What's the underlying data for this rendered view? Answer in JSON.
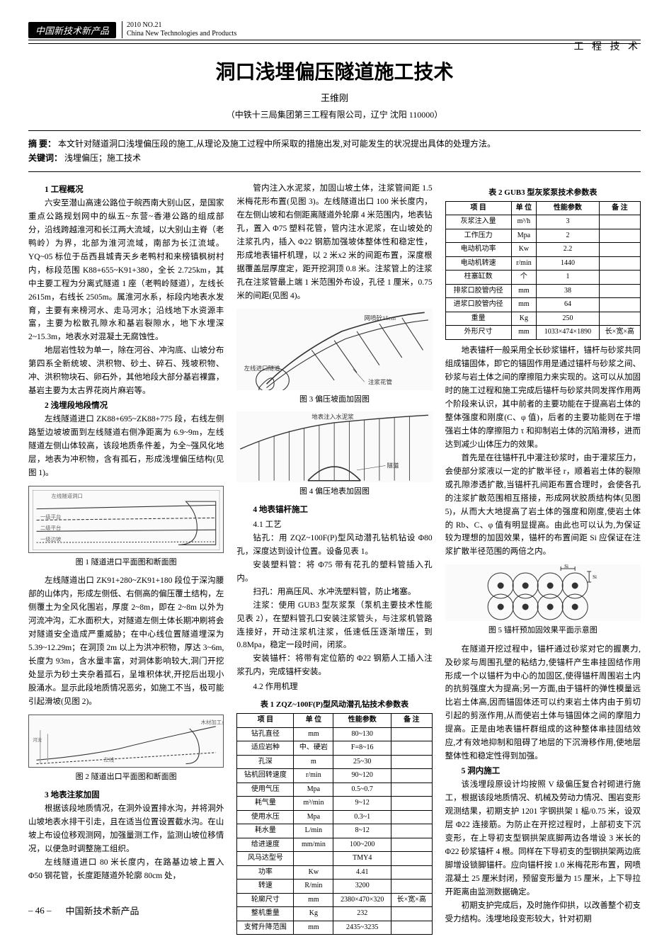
{
  "header": {
    "publication_badge": "中国新技术新产品",
    "issue": "2010 NO.21",
    "pub_en": "China New Technologies and Products",
    "section_tag": "工 程 技 术"
  },
  "paper": {
    "title": "洞口浅埋偏压隧道施工技术",
    "author": "王维刚",
    "affiliation": "（中铁十三局集团第三工程有限公司，辽宁 沈阳 110000）",
    "abstract_label": "摘 要：",
    "abstract": "本文针对隧道洞口浅埋偏压段的施工,从理论及施工过程中所采取的措施出发,对可能发生的状况提出具体的处理方法。",
    "keywords_label": "关键词：",
    "keywords": "浅埋偏压；施工技术"
  },
  "col1": {
    "h1": "1 工程概况",
    "p1": "六安至潜山高速公路位于皖西南大别山区，是国家重点公路规划网中的纵五~东营~香港公路的组成部分，沿线跨越淮河和长江两大流域，以大别山主脊（老鸭岭）为界，北部为淮河流域，南部为长江流域。YQ~05 标位于岳西县城青天乡老鸭村和来榜镇枫树村内，标段范围 K88+655~K91+380，全长 2.725km，其中主要工程为分离式隧道 1 座（老鸭岭隧道），左线长 2615m，右线长 2505m。属淮河水系，标段内地表水发育，主要有来榜河水、走马河水；沿线地下水资源丰富，主要为松散孔隙水和基岩裂隙水，地下水埋深 2~15.3m，地表水对混凝土无腐蚀性。",
    "p2": "地层岩性较为单一，除在河谷、冲沟底、山坡分布第四系全新统坡、洪积物、砂土、碎石、残坡积物、冲、洪积物块石、卵石外，其他地段大部分基岩裸露，基岩主要为太古界花岗片麻岩等。",
    "h2": "2 浅埋段地段情况",
    "p3": "左线隧道进口 ZK88+695~ZK88+775 段，右线左侧路堑边坡坡面到左线隧道右侧净距离为 6.9~9m，左线隧道左侧山体较高，该段地质条件差，为全~强风化地层，地表为冲积物，含有孤石，形成浅埋偏压结构(见图 1)。",
    "fig1_cap": "图 1 隧道进口平面图和断面图",
    "p4": "左线隧道出口 ZK91+280~ZK91+180 段位于深沟腰部的山体内，形成左侧低、右侧高的偏压覆土结构，左侧覆土为全风化围岩，厚度 2~8m，即在 2~8m 以外为河流冲沟，汇水面积大，对隧道左侧土体长期冲刷将会对隧道安全造成严重威胁；在中心线位置隧道埋深为 5.39~12.29m；在洞顶 2m 以上为洪冲积物，厚达 3~6m,长度为 93m，含水量丰富，对洞体影响较大,洞门开挖处显示为砂土夹杂着孤石，呈堆积体状,开挖后出现小股涌水。显示此段地质情况恶劣，如施工不当，极可能引起滑坡(见图 2)。",
    "fig2_cap": "图 2 隧道出口平面图和断面图",
    "h3": "3 地表注浆加固",
    "p5": "根据该段地质情况，在洞外设置排水沟，并将洞外山坡地表水排干引走，且在适当位置设置截水沟。在山坡上布设位移观测网，加强量测工作，监测山坡位移情况，以便急时调整施工组织。",
    "p6": "左线隧道进口 80 米长度内，在路基边坡上置入 Φ50 钢花管，长度距隧道外轮廓 80cm 处，"
  },
  "col2": {
    "p1": "管内注入水泥浆，加固山坡土体，注浆管间距 1.5 米梅花形布置(见图 3)。左线隧道出口 100 米长度内，在左侧山坡和右侧距离隧道外轮廓 4 米范围内，地表钻孔，置入 Φ75 塑料花管，管内注水泥浆，在山坡处的注浆孔内，插入 Φ22 钢筋加强坡体整体性和稳定性，形成地表锚杆机理，以 2 米x2 米的间距布置，深度根据覆盖层厚度定，距开挖洞顶 0.8 米。注浆管上的注浆孔在注浆管最上端 1 米范围外布设，孔径 1 厘米，0.75 米的间距(见图 4)。",
    "fig3_cap": "图 3 偏压坡面加固图",
    "fig3_label1": "网喷砼15cm",
    "fig3_label2": "左线进口隧道",
    "fig3_label3": "注浆花管",
    "fig4_cap": "图 4 偏压地表加固图",
    "fig4_label1": "地表注入水泥浆",
    "fig4_label2": "隧道",
    "h4": "4 地表锚杆施工",
    "h41": "4.1 工艺",
    "p2": "钻孔：用 ZQZ~100F(P)型风动潜孔钻机钻设 Φ80 孔，深度达到设计位置。设备见表 1。",
    "p3": "安装塑料管：将 Φ75 带有花孔的塑料管插入孔内。",
    "p4": "扫孔：用高压风、水冲洗塑料管，防止堵塞。",
    "p5": "注浆：使用 GUB3 型灰浆泵（泵机主要技术性能见表 2），在塑料管孔口安装注浆管头，与注浆机管路连接好，开动注浆机注浆，低速低压逐渐增压，到 0.8Mpa，稳定一段时间，闭浆。",
    "p6": "安装锚杆：将带有定位筋的 Φ22 钢筋人工插入注浆孔内，完成锚杆安装。",
    "h42": "4.2 作用机理",
    "tbl1_cap": "表 1 ZQZ~100F(P)型风动潜孔钻技术参数表"
  },
  "table1": {
    "headers": [
      "项 目",
      "单 位",
      "性能参数",
      "备 注"
    ],
    "rows": [
      [
        "钻孔直径",
        "mm",
        "80~130",
        ""
      ],
      [
        "适应岩种",
        "中、硬岩",
        "F=8~16",
        ""
      ],
      [
        "孔深",
        "m",
        "25~30",
        ""
      ],
      [
        "钻机回转速度",
        "r/min",
        "90~120",
        ""
      ],
      [
        "使用气压",
        "Mpa",
        "0.5~0.7",
        ""
      ],
      [
        "耗气量",
        "m³/min",
        "9~12",
        ""
      ],
      [
        "使用水压",
        "Mpa",
        "0.3~1",
        ""
      ],
      [
        "耗水量",
        "L/min",
        "8~12",
        ""
      ],
      [
        "给进速度",
        "mm/min",
        "100~200",
        ""
      ],
      [
        "风马达型号",
        "",
        "TMY4",
        ""
      ],
      [
        "功率",
        "Kw",
        "4.41",
        ""
      ],
      [
        "转速",
        "R/min",
        "3200",
        ""
      ],
      [
        "轮廓尺寸",
        "mm",
        "2380×470×320",
        "长×宽×高"
      ],
      [
        "整机重量",
        "Kg",
        "232",
        ""
      ],
      [
        "支臂升降范围",
        "mm",
        "2435~3235",
        ""
      ]
    ]
  },
  "col3": {
    "tbl2_cap": "表 2 GUB3 型灰浆泵技术参数表",
    "p1": "地表锚杆一般采用全长砂浆锚杆，锚杆与砂浆共同组成锚固体，即它的锚固作用是通过锚杆与砂浆之间、砂浆与岩土体之间的摩擦阻力来实现的。这可以从加固时的施工过程和施工完成后锚杆与砂浆共同发挥作用两个阶段来认识，其中前者的主要功能在于提高岩土体的整体强度和刚度(C、φ 值)，后者的主要功能则在于增强岩土体的摩擦阻力 τ 和抑制岩土体的沉陷滑移，进而达到减少山体压力的效果。",
    "p2": "首先是在往锚杆孔中灌注砂浆时，由于灌浆压力，会使部分浆液以一定的扩散半径 r，顺着岩土体的裂隙或孔隙渗透扩散,当锚杆孔间距布置合理时，会使各孔的注浆扩散范围相互搭接，形成网状胶质结构体(见图 5)，从而大大地提高了岩土体的强度和刚度,使岩土体的 Rb、C、φ 值有明显提高。由此也可以认为,为保证较为理想的加固效果，锚杆的布置间距 Si 应保证在注浆扩散半径范围的两倍之内。",
    "fig5_cap": "图 5 锚杆预加固效果平面示意图",
    "p3": "在隧道开挖过程中，锚杆通过砂浆对它的握裹力,及砂浆与周围孔壁的粘结力,使锚杆产生串挂固结作用形成一个以锚杆为中心的加固区,使得锚杆周围岩土内的抗剪强度大为提高;另一方面,由于锚杆的弹性模量远比岩土体高,因而锚固体还可以约束岩土体内由于剪切引起的剪涨作用,从而使岩土体与锚固体之间的摩阻力提高。正是由地表锚杆群组成的这种整体串挂固结效应,才有效地抑制和阻碍了地层的下沉滑移作用,使地层整体性和稳定性得到加强。",
    "h5": "5 洞内施工",
    "p4": "该浅埋段原设计均按照 V 级偏压复合衬砌进行施工，根据该段地质情况、机械及劳动力情况、围岩变形观测结果，初期支护 1201 字钢拱架 1 榀/0.75 米，设双层 Φ22 连接筋。为防止在开挖过程时，上部初支下沉变形，在上导初支型钢拱架底脚两边各增设 3 米长的 Φ22 砂浆锚杆 4 根。同样在下导初支的型钢拱架两边底脚增设锁脚锚杆。应向锚杆按 1.0 米梅花形布置，网喷混凝土 25 厘米封闭，预留变形量为 15 厘米，上下导拉开距离由监测数据确定。",
    "p5": "初期支护完成后，及时施作仰拱，以改善整个初支受力结构。浅埋地段变形较大，针对初期"
  },
  "table2": {
    "headers": [
      "项 目",
      "单 位",
      "性能参数",
      "备 注"
    ],
    "rows": [
      [
        "灰浆注入量",
        "m³/h",
        "3",
        ""
      ],
      [
        "工作压力",
        "Mpa",
        "2",
        ""
      ],
      [
        "电动机功率",
        "Kw",
        "2.2",
        ""
      ],
      [
        "电动机转速",
        "r/min",
        "1440",
        ""
      ],
      [
        "柱塞缸数",
        "个",
        "1",
        ""
      ],
      [
        "排浆口胶管内径",
        "mm",
        "38",
        ""
      ],
      [
        "进浆口胶管内径",
        "mm",
        "64",
        ""
      ],
      [
        "重量",
        "Kg",
        "250",
        ""
      ],
      [
        "外形尺寸",
        "mm",
        "1033×474×1890",
        "长×宽×高"
      ]
    ]
  },
  "footer": {
    "page": "– 46 –",
    "pub": "中国新技术新产品"
  }
}
